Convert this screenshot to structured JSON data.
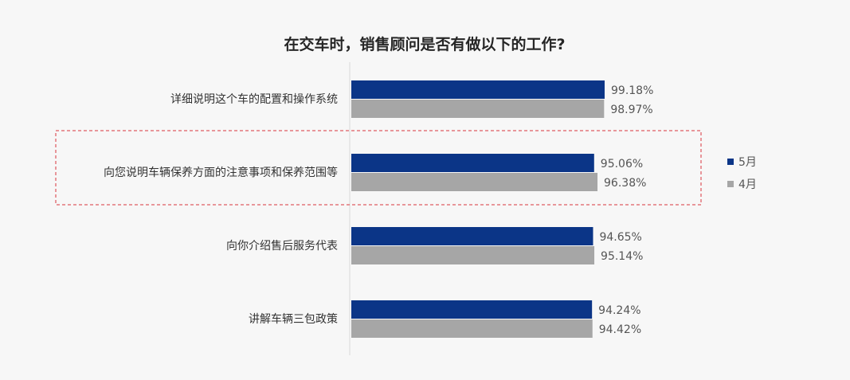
{
  "chart_data": {
    "type": "bar",
    "orientation": "horizontal",
    "title": "在交车时，销售顾问是否有做以下的工作?",
    "categories": [
      "详细说明这个车的配置和操作系统",
      "向您说明车辆保养方面的注意事项和保养范围等",
      "向你介绍售后服务代表",
      "讲解车辆三包政策"
    ],
    "series": [
      {
        "name": "5月",
        "values": [
          99.18,
          95.06,
          94.65,
          94.24
        ],
        "labels": [
          "99.18%",
          "95.06%",
          "94.65%",
          "94.24%"
        ],
        "color": "#0b3587"
      },
      {
        "name": "4月",
        "values": [
          98.97,
          96.38,
          95.14,
          94.42
        ],
        "labels": [
          "98.97%",
          "96.38%",
          "95.14%",
          "94.42%"
        ],
        "color": "#a6a6a6"
      }
    ],
    "highlighted_category": "向您说明车辆保养方面的注意事项和保养范围等",
    "highlight_color": "#d9363e",
    "legend": "right",
    "grid": false
  }
}
